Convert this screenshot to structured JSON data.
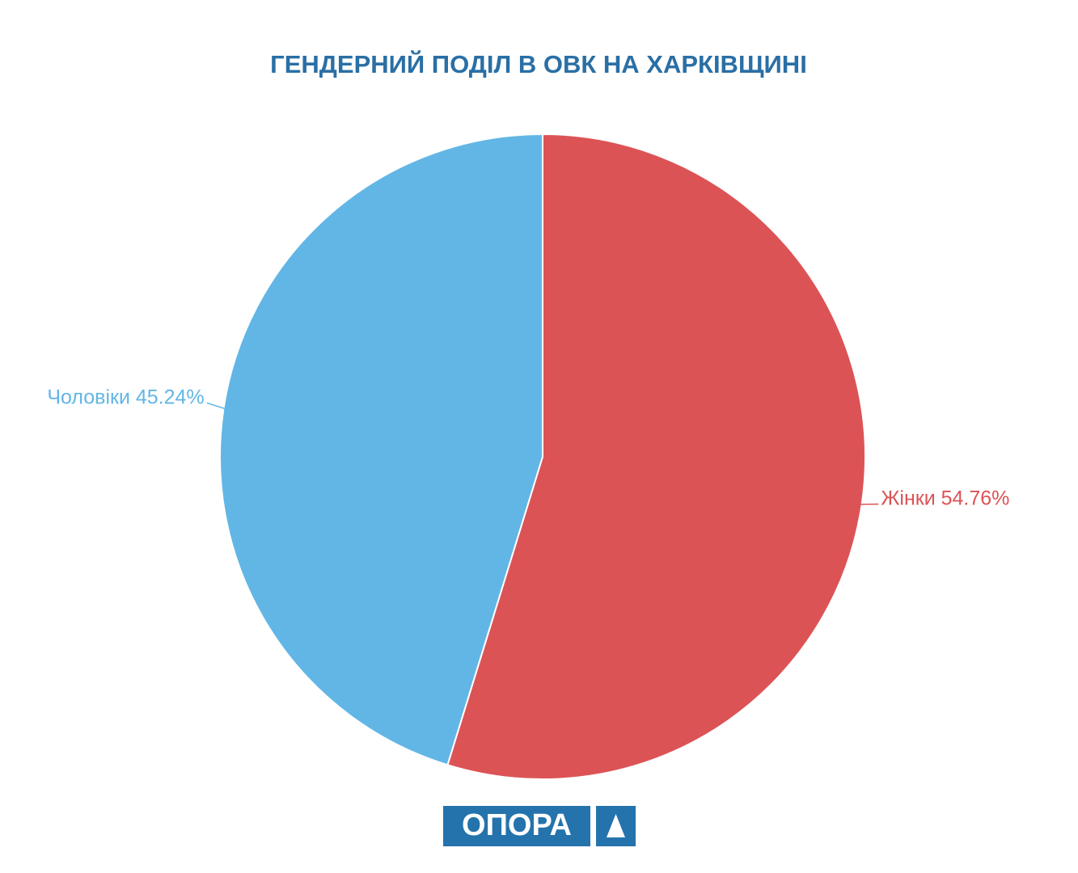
{
  "chart_data": {
    "type": "pie",
    "title": "ГЕНДЕРНИЙ ПОДІЛ В ОВК НА ХАРКІВЩИНІ",
    "categories": [
      "Жінки",
      "Чоловіки"
    ],
    "values": [
      54.76,
      45.24
    ],
    "value_labels": [
      "54.76%",
      "45.24%"
    ],
    "colors": [
      "#dc5356",
      "#62b6e5"
    ]
  },
  "logo": "ОПОРА"
}
